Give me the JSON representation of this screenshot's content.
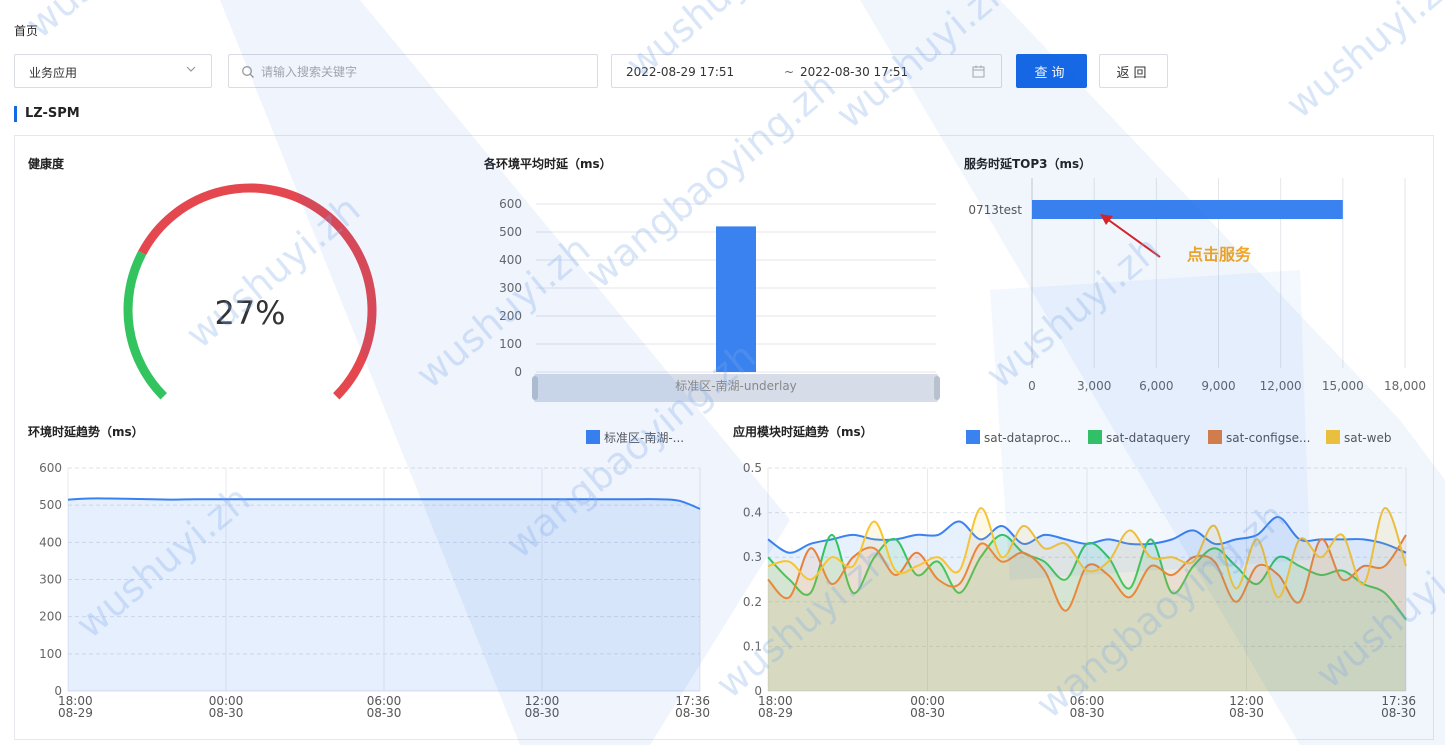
{
  "breadcrumb": "首页",
  "filters": {
    "app_select": "业务应用",
    "search_placeholder": "请输入搜索关键字",
    "date_start": "2022-08-29 17:51",
    "date_sep": "~",
    "date_end": "2022-08-30 17:51",
    "query_button": "查询",
    "back_button": "返回"
  },
  "section_title": "LZ-SPM",
  "colors": {
    "accent": "#1668e5",
    "bar": "#3a82f0",
    "gauge_green": "#33c460",
    "gauge_red": "#e5474f",
    "annotation": "#f5a623",
    "series": [
      "#3a82f0",
      "#33c460",
      "#e8803c",
      "#f7c534"
    ]
  },
  "health": {
    "title": "健康度",
    "value_label": "27%",
    "value": 27
  },
  "env_avg": {
    "title": "各环境平均时延（ms）",
    "chart_data": {
      "type": "bar",
      "categories": [
        "标准区-南湖-underlay"
      ],
      "values": [
        520
      ],
      "ylim": [
        0,
        600
      ],
      "yticks": [
        "0",
        "100",
        "200",
        "300",
        "400",
        "500",
        "600"
      ]
    }
  },
  "top3": {
    "title": "服务时延TOP3（ms）",
    "annotation": "点击服务",
    "chart_data": {
      "type": "bar",
      "orientation": "horizontal",
      "categories": [
        "0713test"
      ],
      "values": [
        15000
      ],
      "xlim": [
        0,
        18000
      ],
      "xticks": [
        "0",
        "3,000",
        "6,000",
        "9,000",
        "12,000",
        "15,000",
        "18,000"
      ]
    }
  },
  "env_trend": {
    "title": "环境时延趋势（ms）",
    "legend": [
      "标准区-南湖-..."
    ],
    "chart_data": {
      "type": "area",
      "ylim": [
        0,
        600
      ],
      "yticks": [
        "0",
        "100",
        "200",
        "300",
        "400",
        "500",
        "600"
      ],
      "xticks": [
        {
          "t": "18:00",
          "d": "08-29"
        },
        {
          "t": "00:00",
          "d": "08-30"
        },
        {
          "t": "06:00",
          "d": "08-30"
        },
        {
          "t": "12:00",
          "d": "08-30"
        },
        {
          "t": "17:36",
          "d": "08-30"
        }
      ],
      "series": [
        {
          "name": "标准区-南湖-...",
          "values": [
            515,
            518,
            518,
            517,
            516,
            515,
            516,
            516,
            516,
            516,
            516,
            516,
            516,
            516,
            516,
            516,
            516,
            516,
            516,
            516,
            516,
            516,
            516,
            516,
            516,
            516,
            516,
            516,
            516,
            512,
            490
          ]
        }
      ]
    }
  },
  "module_trend": {
    "title": "应用模块时延趋势（ms）",
    "legend": [
      "sat-dataproc...",
      "sat-dataquery",
      "sat-configse...",
      "sat-web"
    ],
    "chart_data": {
      "type": "area",
      "ylim": [
        0,
        0.5
      ],
      "yticks": [
        "0",
        "0.1",
        "0.2",
        "0.3",
        "0.4",
        "0.5"
      ],
      "xticks": [
        {
          "t": "18:00",
          "d": "08-29"
        },
        {
          "t": "00:00",
          "d": "08-30"
        },
        {
          "t": "06:00",
          "d": "08-30"
        },
        {
          "t": "12:00",
          "d": "08-30"
        },
        {
          "t": "17:36",
          "d": "08-30"
        }
      ],
      "series": [
        {
          "name": "sat-dataproc...",
          "values": [
            0.34,
            0.31,
            0.33,
            0.34,
            0.35,
            0.34,
            0.34,
            0.35,
            0.35,
            0.38,
            0.34,
            0.37,
            0.33,
            0.35,
            0.34,
            0.33,
            0.34,
            0.33,
            0.33,
            0.34,
            0.36,
            0.33,
            0.34,
            0.35,
            0.39,
            0.34,
            0.34,
            0.34,
            0.34,
            0.33,
            0.31
          ]
        },
        {
          "name": "sat-dataquery",
          "values": [
            0.3,
            0.25,
            0.22,
            0.35,
            0.22,
            0.3,
            0.34,
            0.26,
            0.29,
            0.22,
            0.3,
            0.35,
            0.31,
            0.29,
            0.25,
            0.33,
            0.3,
            0.23,
            0.34,
            0.22,
            0.28,
            0.32,
            0.28,
            0.24,
            0.3,
            0.28,
            0.26,
            0.27,
            0.24,
            0.22,
            0.16
          ]
        },
        {
          "name": "sat-configse...",
          "values": [
            0.25,
            0.21,
            0.32,
            0.24,
            0.3,
            0.32,
            0.26,
            0.31,
            0.25,
            0.24,
            0.33,
            0.29,
            0.31,
            0.27,
            0.18,
            0.28,
            0.26,
            0.21,
            0.28,
            0.26,
            0.3,
            0.29,
            0.2,
            0.28,
            0.26,
            0.2,
            0.34,
            0.25,
            0.28,
            0.28,
            0.35
          ]
        },
        {
          "name": "sat-web",
          "values": [
            0.28,
            0.29,
            0.25,
            0.3,
            0.28,
            0.38,
            0.27,
            0.28,
            0.3,
            0.27,
            0.41,
            0.3,
            0.37,
            0.32,
            0.33,
            0.27,
            0.29,
            0.36,
            0.3,
            0.3,
            0.29,
            0.37,
            0.23,
            0.34,
            0.21,
            0.34,
            0.3,
            0.35,
            0.24,
            0.41,
            0.28
          ]
        }
      ]
    }
  },
  "watermarks": [
    "wushuyi.zh",
    "wangbaoying.zh"
  ]
}
